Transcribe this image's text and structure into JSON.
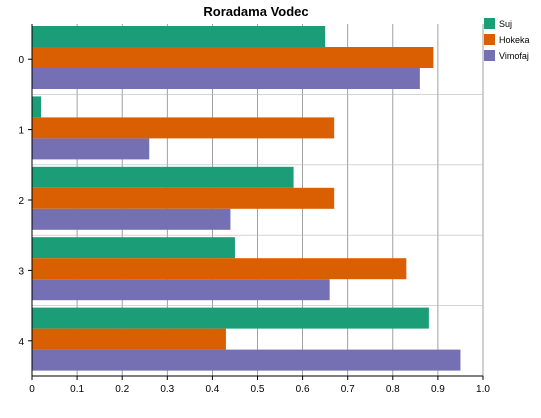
{
  "chart_data": {
    "type": "bar",
    "orientation": "horizontal",
    "title": "Roradama Vodec",
    "xlabel": "",
    "ylabel": "",
    "xlim": [
      0,
      1.0
    ],
    "x_ticks": [
      "0",
      "0.1",
      "0.2",
      "0.3",
      "0.4",
      "0.5",
      "0.6",
      "0.7",
      "0.8",
      "0.9",
      "1.0"
    ],
    "categories": [
      "0",
      "1",
      "2",
      "3",
      "4"
    ],
    "series": [
      {
        "name": "Suj",
        "color": "#1b9e77",
        "values": [
          0.65,
          0.02,
          0.58,
          0.45,
          0.88
        ]
      },
      {
        "name": "Hokeka",
        "color": "#d95f02",
        "values": [
          0.89,
          0.67,
          0.67,
          0.83,
          0.43
        ]
      },
      {
        "name": "Vimofaj",
        "color": "#7570b3",
        "values": [
          0.86,
          0.26,
          0.44,
          0.66,
          0.95
        ]
      }
    ],
    "grid": true,
    "legend_position": "top-right"
  }
}
